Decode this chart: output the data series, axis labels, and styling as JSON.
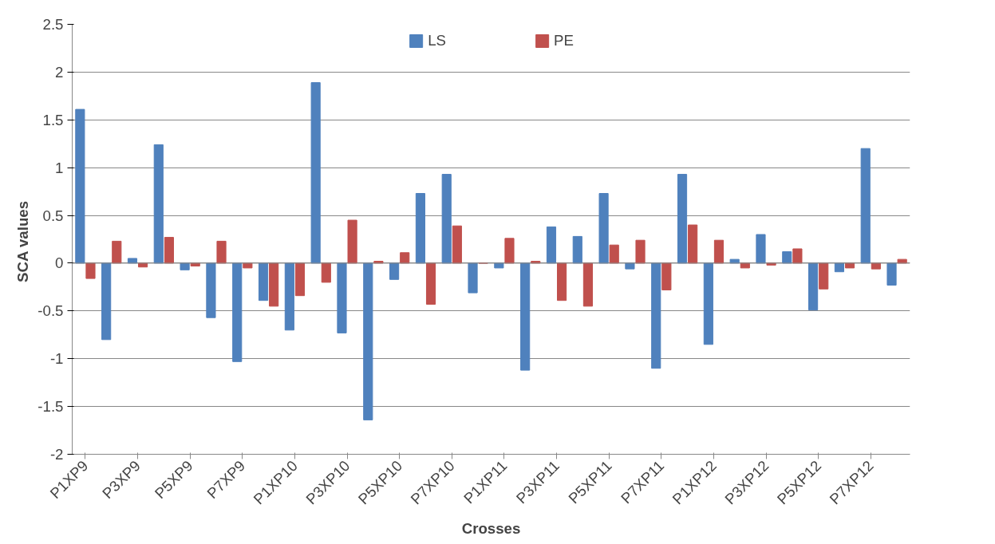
{
  "chart_data": {
    "type": "bar",
    "xlabel": "Crosses",
    "ylabel": "SCA  values",
    "categories": [
      "P1XP9",
      null,
      "P3XP9",
      null,
      "P5XP9",
      null,
      "P7XP9",
      null,
      "P1XP10",
      null,
      "P3XP10",
      null,
      "P5XP10",
      null,
      "P7XP10",
      null,
      "P1XP11",
      null,
      "P3XP11",
      null,
      "P5XP11",
      null,
      "P7XP11",
      null,
      "P1XP12",
      null,
      "P3XP12",
      null,
      "P5XP12",
      null,
      "P7XP12",
      null
    ],
    "series": [
      {
        "name": "LS",
        "color": "#4f81bd",
        "values": [
          1.61,
          -0.8,
          0.05,
          1.24,
          -0.07,
          -0.57,
          -1.03,
          -0.39,
          -0.7,
          1.89,
          -0.73,
          -1.64,
          -0.17,
          0.73,
          0.93,
          -0.31,
          -0.05,
          -1.12,
          0.38,
          0.28,
          0.73,
          -0.06,
          -1.1,
          0.93,
          -0.85,
          0.04,
          0.3,
          0.12,
          -0.49,
          -0.09,
          1.2,
          -0.23
        ]
      },
      {
        "name": "PE",
        "color": "#c0504d",
        "values": [
          -0.16,
          0.23,
          -0.04,
          0.27,
          -0.03,
          0.23,
          -0.05,
          -0.45,
          -0.34,
          -0.2,
          0.45,
          0.02,
          0.11,
          -0.43,
          0.39,
          0,
          0.26,
          0.02,
          -0.39,
          -0.45,
          0.19,
          0.24,
          -0.28,
          0.4,
          0.24,
          -0.05,
          -0.02,
          0.15,
          -0.27,
          -0.05,
          -0.06,
          0.04
        ]
      }
    ],
    "ylim": [
      -2,
      2.5
    ],
    "yticks": [
      -2,
      -1.5,
      -1,
      -0.5,
      0,
      0.5,
      1,
      1.5,
      2,
      2.5
    ],
    "grid": "y",
    "legend": "top"
  }
}
